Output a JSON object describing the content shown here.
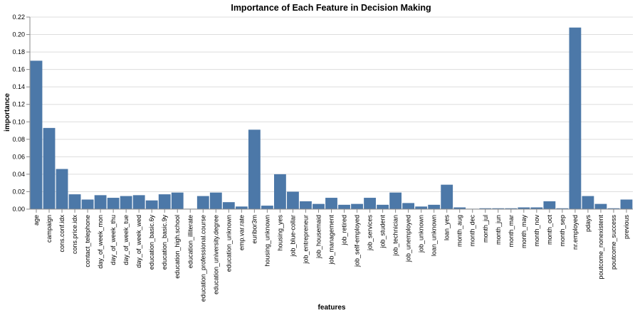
{
  "chart_data": {
    "type": "bar",
    "title": "Importance of Each Feature in Decision Making",
    "xlabel": "features",
    "ylabel": "importance",
    "ylim": [
      0,
      0.22
    ],
    "yticks": [
      "0.00",
      "0.02",
      "0.04",
      "0.06",
      "0.08",
      "0.10",
      "0.12",
      "0.14",
      "0.16",
      "0.18",
      "0.20",
      "0.22"
    ],
    "grid": true,
    "bar_color": "#4c78a8",
    "categories": [
      "age",
      "campaign",
      "cons.conf.idx",
      "cons.price.idx",
      "contact_telephone",
      "day_of_week_mon",
      "day_of_week_thu",
      "day_of_week_tue",
      "day_of_week_wed",
      "education_basic.6y",
      "education_basic.9y",
      "education_high.school",
      "education_illiterate",
      "education_professional.course",
      "education_university.degree",
      "education_unknown",
      "emp.var.rate",
      "euribor3m",
      "housing_unknown",
      "housing_yes",
      "job_blue-collar",
      "job_entrepreneur",
      "job_housemaid",
      "job_management",
      "job_retired",
      "job_self-employed",
      "job_services",
      "job_student",
      "job_technician",
      "job_unemployed",
      "job_unknown",
      "loan_unknown",
      "loan_yes",
      "month_aug",
      "month_dec",
      "month_jul",
      "month_jun",
      "month_mar",
      "month_may",
      "month_nov",
      "month_oct",
      "month_sep",
      "nr.employed",
      "pdays",
      "poutcome_nonexistent",
      "poutcome_success",
      "previous"
    ],
    "values": [
      0.17,
      0.093,
      0.046,
      0.017,
      0.011,
      0.016,
      0.013,
      0.015,
      0.016,
      0.01,
      0.017,
      0.019,
      0.0005,
      0.015,
      0.019,
      0.008,
      0.003,
      0.091,
      0.004,
      0.04,
      0.02,
      0.009,
      0.006,
      0.013,
      0.005,
      0.006,
      0.013,
      0.005,
      0.019,
      0.007,
      0.003,
      0.005,
      0.028,
      0.002,
      0.0005,
      0.001,
      0.001,
      0.001,
      0.002,
      0.002,
      0.009,
      0.001,
      0.208,
      0.015,
      0.006,
      0.001,
      0.011
    ]
  }
}
